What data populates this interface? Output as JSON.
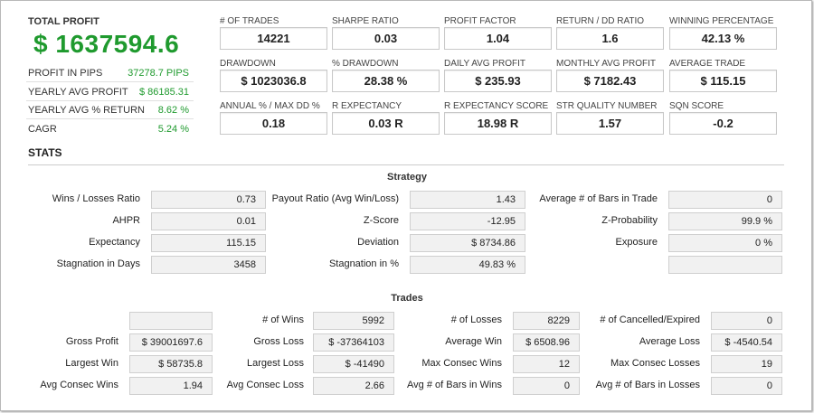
{
  "total_profit": {
    "label": "TOTAL PROFIT",
    "value": "$ 1637594.6"
  },
  "summary": [
    {
      "label": "PROFIT IN PIPS",
      "value": "37278.7 PIPS"
    },
    {
      "label": "YEARLY AVG PROFIT",
      "value": "$ 86185.31"
    },
    {
      "label": "YEARLY AVG % RETURN",
      "value": "8.62 %"
    },
    {
      "label": "CAGR",
      "value": "5.24 %"
    }
  ],
  "metrics": [
    {
      "label": "# OF TRADES",
      "value": "14221"
    },
    {
      "label": "SHARPE RATIO",
      "value": "0.03"
    },
    {
      "label": "PROFIT FACTOR",
      "value": "1.04"
    },
    {
      "label": "RETURN / DD RATIO",
      "value": "1.6"
    },
    {
      "label": "WINNING PERCENTAGE",
      "value": "42.13 %"
    },
    {
      "label": "DRAWDOWN",
      "value": "$ 1023036.8"
    },
    {
      "label": "% DRAWDOWN",
      "value": "28.38 %"
    },
    {
      "label": "DAILY AVG PROFIT",
      "value": "$ 235.93"
    },
    {
      "label": "MONTHLY AVG PROFIT",
      "value": "$ 7182.43"
    },
    {
      "label": "AVERAGE TRADE",
      "value": "$ 115.15"
    },
    {
      "label": "ANNUAL % / MAX DD %",
      "value": "0.18"
    },
    {
      "label": "R EXPECTANCY",
      "value": "0.03 R"
    },
    {
      "label": "R EXPECTANCY SCORE",
      "value": "18.98 R"
    },
    {
      "label": "STR QUALITY NUMBER",
      "value": "1.57"
    },
    {
      "label": "SQN SCORE",
      "value": "-0.2"
    }
  ],
  "stats_title": "STATS",
  "strategy": {
    "title": "Strategy",
    "rows": [
      [
        {
          "label": "Wins / Losses Ratio",
          "value": "0.73"
        },
        {
          "label": "Payout Ratio (Avg Win/Loss)",
          "value": "1.43"
        },
        {
          "label": "Average # of Bars in Trade",
          "value": "0"
        }
      ],
      [
        {
          "label": "AHPR",
          "value": "0.01"
        },
        {
          "label": "Z-Score",
          "value": "-12.95"
        },
        {
          "label": "Z-Probability",
          "value": "99.9 %"
        }
      ],
      [
        {
          "label": "Expectancy",
          "value": "115.15"
        },
        {
          "label": "Deviation",
          "value": "$ 8734.86"
        },
        {
          "label": "Exposure",
          "value": "0 %"
        }
      ],
      [
        {
          "label": "Stagnation in Days",
          "value": "3458"
        },
        {
          "label": "Stagnation in %",
          "value": "49.83 %"
        },
        {
          "label": "",
          "value": ""
        }
      ]
    ]
  },
  "trades": {
    "title": "Trades",
    "rows": [
      [
        {
          "label": "",
          "value": ""
        },
        {
          "label": "# of Wins",
          "value": "5992"
        },
        {
          "label": "# of Losses",
          "value": "8229"
        },
        {
          "label": "# of Cancelled/Expired",
          "value": "0"
        }
      ],
      [
        {
          "label": "Gross Profit",
          "value": "$ 39001697.6"
        },
        {
          "label": "Gross Loss",
          "value": "$ -37364103"
        },
        {
          "label": "Average Win",
          "value": "$ 6508.96"
        },
        {
          "label": "Average Loss",
          "value": "$ -4540.54"
        }
      ],
      [
        {
          "label": "Largest Win",
          "value": "$ 58735.8"
        },
        {
          "label": "Largest Loss",
          "value": "$ -41490"
        },
        {
          "label": "Max Consec Wins",
          "value": "12"
        },
        {
          "label": "Max Consec Losses",
          "value": "19"
        }
      ],
      [
        {
          "label": "Avg Consec Wins",
          "value": "1.94"
        },
        {
          "label": "Avg Consec Loss",
          "value": "2.66"
        },
        {
          "label": "Avg # of Bars in Wins",
          "value": "0"
        },
        {
          "label": "Avg # of Bars in Losses",
          "value": "0"
        }
      ]
    ]
  }
}
